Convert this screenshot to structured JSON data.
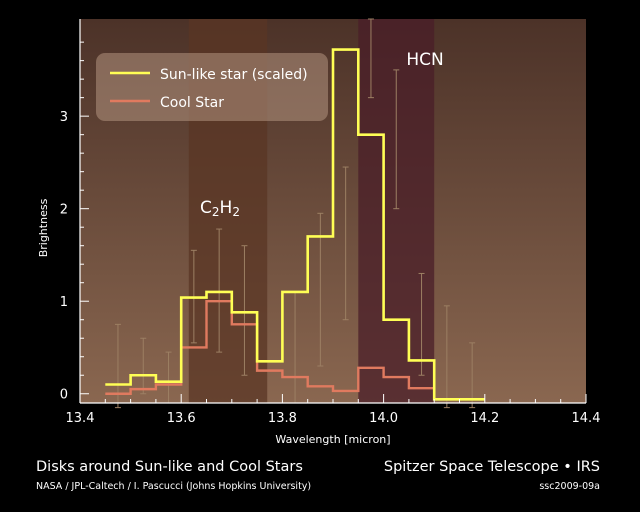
{
  "chart_data": {
    "type": "line",
    "xlabel": "Wavelength [micron]",
    "ylabel": "Brightness",
    "xlim": [
      13.4,
      14.4
    ],
    "ylim": [
      -0.1,
      4.05
    ],
    "xticks": [
      "13.4",
      "13.6",
      "13.8",
      "14.0",
      "14.2",
      "14.4"
    ],
    "yticks": [
      "0",
      "1",
      "2",
      "3"
    ],
    "grid": false,
    "legend_position": "top-left",
    "steps": [
      13.45,
      13.5,
      13.55,
      13.6,
      13.65,
      13.7,
      13.75,
      13.8,
      13.85,
      13.9,
      13.95,
      14.0,
      14.05,
      14.1,
      14.15,
      14.2
    ],
    "series": [
      {
        "name": "Sun-like star (scaled)",
        "color": "#ffff55",
        "values": [
          0.1,
          0.2,
          0.13,
          1.04,
          1.1,
          0.88,
          0.35,
          1.1,
          1.7,
          3.72,
          2.8,
          0.8,
          0.36,
          -0.06,
          -0.06
        ]
      },
      {
        "name": "Cool Star",
        "color": "#e07a5f",
        "values": [
          0.0,
          0.05,
          0.1,
          0.5,
          1.0,
          0.75,
          0.25,
          0.18,
          0.08,
          0.03,
          0.28,
          0.18,
          0.06,
          -0.06,
          -0.06
        ]
      }
    ],
    "error_bars": [
      {
        "x": 13.475,
        "lo": -0.15,
        "hi": 0.75
      },
      {
        "x": 13.525,
        "lo": 0.0,
        "hi": 0.6
      },
      {
        "x": 13.575,
        "lo": -0.1,
        "hi": 0.45
      },
      {
        "x": 13.625,
        "lo": 0.55,
        "hi": 1.55
      },
      {
        "x": 13.675,
        "lo": 0.45,
        "hi": 1.78
      },
      {
        "x": 13.725,
        "lo": 0.2,
        "hi": 1.6
      },
      {
        "x": 13.825,
        "lo": -0.1,
        "hi": 1.1
      },
      {
        "x": 13.875,
        "lo": 0.3,
        "hi": 1.95
      },
      {
        "x": 13.925,
        "lo": 0.8,
        "hi": 2.45
      },
      {
        "x": 13.975,
        "lo": 3.2,
        "hi": 4.05
      },
      {
        "x": 14.025,
        "lo": 2.0,
        "hi": 3.5
      },
      {
        "x": 14.075,
        "lo": 0.2,
        "hi": 1.3
      },
      {
        "x": 14.125,
        "lo": -0.15,
        "hi": 0.95
      },
      {
        "x": 14.175,
        "lo": -0.15,
        "hi": 0.55
      }
    ],
    "bands": [
      {
        "label_main": "C",
        "sub1": "2",
        "label_mid": "H",
        "sub2": "2",
        "from": 13.615,
        "to": 13.77,
        "color": "#5a3524"
      },
      {
        "label_main": "HCN",
        "from": 13.95,
        "to": 14.1,
        "color": "#4a1e28"
      }
    ]
  },
  "footer": {
    "title": "Disks around Sun-like and Cool Stars",
    "credit": "NASA / JPL-Caltech / I. Pascucci (Johns Hopkins University)",
    "mission": "Spitzer Space Telescope • IRS",
    "id": "ssc2009-09a"
  }
}
